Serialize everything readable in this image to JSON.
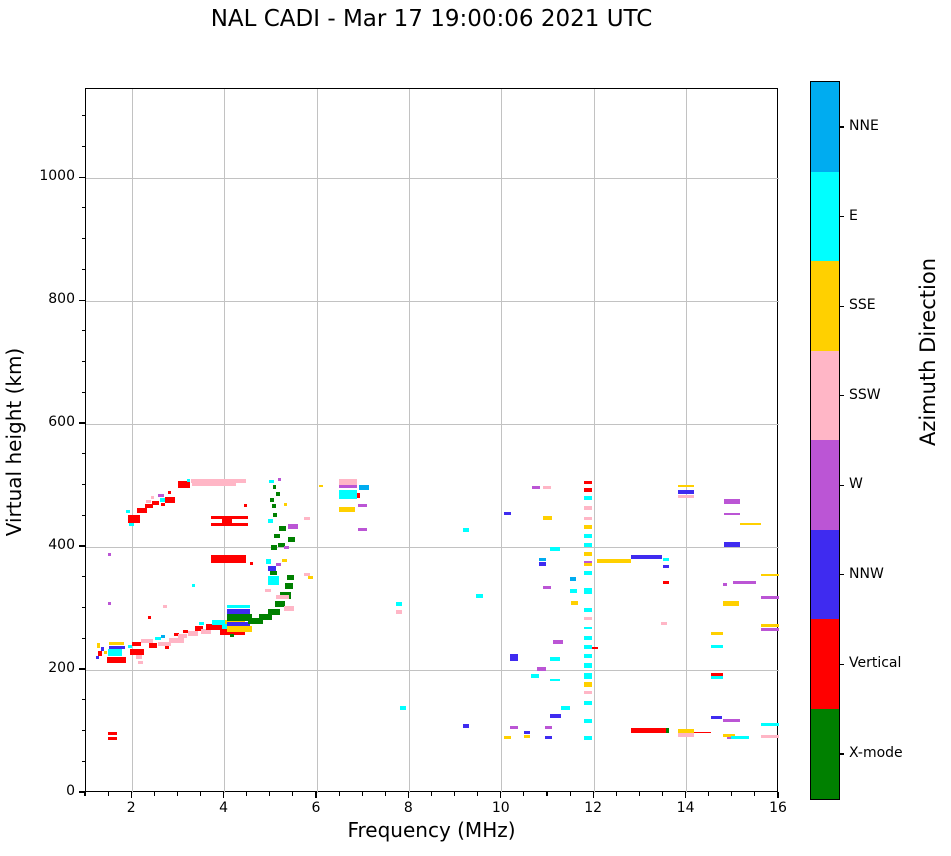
{
  "title": "NAL CADI - Mar 17 19:00:06 2021 UTC",
  "chart_data": {
    "type": "scatter",
    "title": "NAL CADI - Mar 17 19:00:06 2021 UTC",
    "xlabel": "Frequency (MHz)",
    "ylabel": "Virtual height (km)",
    "xlim": [
      1,
      16
    ],
    "ylim": [
      0,
      1145
    ],
    "xticks": [
      2,
      4,
      6,
      8,
      10,
      12,
      14,
      16
    ],
    "yticks": [
      0,
      200,
      400,
      600,
      800,
      1000
    ],
    "x_minor_step": 0.5,
    "y_minor_step": 50,
    "grid": true,
    "grid_color": "#c2c2c2",
    "legend_position": "right-colorbar",
    "colorbar": {
      "label": "Azimuth Direction",
      "categories": [
        {
          "label": "NNE",
          "color": "#00ACF0"
        },
        {
          "label": "E",
          "color": "#00FFFF"
        },
        {
          "label": "SSE",
          "color": "#FFD000"
        },
        {
          "label": "SSW",
          "color": "#FFB6C6"
        },
        {
          "label": "W",
          "color": "#BB55D5"
        },
        {
          "label": "NNW",
          "color": "#3F2BF0"
        },
        {
          "label": "Vertical",
          "color": "#FF0000"
        },
        {
          "label": "X-mode",
          "color": "#008000"
        }
      ]
    },
    "point_format": [
      "freq_MHz",
      "height_km",
      "azimuth_key",
      "width_MHz",
      "thickness_px"
    ],
    "points": [
      [
        1.86,
        458,
        "E",
        0.1,
        3
      ],
      [
        1.9,
        446,
        "V",
        0.26,
        8
      ],
      [
        1.93,
        437,
        "E",
        0.1,
        3
      ],
      [
        2.1,
        459,
        "V",
        0.22,
        5
      ],
      [
        2.28,
        466,
        "V",
        0.16,
        4
      ],
      [
        2.3,
        474,
        "SSW",
        0.1,
        3
      ],
      [
        2.4,
        481,
        "SSW",
        0.08,
        3
      ],
      [
        2.43,
        472,
        "V",
        0.14,
        4
      ],
      [
        2.56,
        484,
        "W",
        0.12,
        3
      ],
      [
        2.6,
        477,
        "E",
        0.14,
        4
      ],
      [
        2.62,
        470,
        "V",
        0.1,
        3
      ],
      [
        2.72,
        476,
        "V",
        0.2,
        6
      ],
      [
        2.77,
        488,
        "V",
        0.06,
        3
      ],
      [
        3.0,
        501,
        "V",
        0.26,
        7
      ],
      [
        3.18,
        509,
        "E",
        0.08,
        3
      ],
      [
        3.27,
        508,
        "SSW",
        1.2,
        4
      ],
      [
        3.3,
        501,
        "SSW",
        0.95,
        3
      ],
      [
        3.7,
        448,
        "V",
        0.8,
        3
      ],
      [
        3.7,
        436,
        "V",
        0.8,
        3
      ],
      [
        3.95,
        443,
        "V",
        0.22,
        5
      ],
      [
        3.7,
        380,
        "V",
        0.76,
        8
      ],
      [
        1.47,
        388,
        "W",
        0.06,
        3
      ],
      [
        1.48,
        309,
        "W",
        0.06,
        3
      ],
      [
        1.48,
        96,
        "V",
        0.2,
        3
      ],
      [
        1.48,
        89,
        "V",
        0.2,
        3
      ],
      [
        1.24,
        240,
        "SSE",
        0.07,
        5
      ],
      [
        1.27,
        227,
        "V",
        0.07,
        5
      ],
      [
        1.21,
        221,
        "NNW",
        0.05,
        3
      ],
      [
        1.33,
        235,
        "NNW",
        0.07,
        4
      ],
      [
        1.39,
        228,
        "SSE",
        0.05,
        3
      ],
      [
        1.5,
        243,
        "SSE",
        0.33,
        3
      ],
      [
        1.5,
        236,
        "NNW",
        0.35,
        3
      ],
      [
        1.47,
        228,
        "E",
        0.3,
        7
      ],
      [
        1.45,
        217,
        "V",
        0.42,
        6
      ],
      [
        1.9,
        238,
        "E",
        0.1,
        3
      ],
      [
        1.95,
        230,
        "V",
        0.3,
        6
      ],
      [
        2.0,
        243,
        "V",
        0.2,
        4
      ],
      [
        2.08,
        222,
        "SSW",
        0.14,
        4
      ],
      [
        2.13,
        212,
        "SSW",
        0.1,
        3
      ],
      [
        2.2,
        247,
        "SSW",
        0.25,
        4
      ],
      [
        2.34,
        285,
        "V",
        0.06,
        3
      ],
      [
        2.36,
        240,
        "V",
        0.18,
        5
      ],
      [
        2.5,
        252,
        "E",
        0.12,
        3
      ],
      [
        2.55,
        243,
        "SSW",
        0.28,
        4
      ],
      [
        2.63,
        255,
        "NNE",
        0.08,
        3
      ],
      [
        2.67,
        304,
        "SSW",
        0.09,
        3
      ],
      [
        2.7,
        236,
        "V",
        0.1,
        3
      ],
      [
        2.8,
        248,
        "SSW",
        0.32,
        5
      ],
      [
        2.9,
        258,
        "V",
        0.12,
        3
      ],
      [
        3.0,
        255,
        "SSW",
        0.18,
        4
      ],
      [
        3.1,
        262,
        "V",
        0.1,
        3
      ],
      [
        3.2,
        260,
        "SSW",
        0.22,
        5
      ],
      [
        3.3,
        337,
        "E",
        0.07,
        3
      ],
      [
        3.35,
        268,
        "V",
        0.18,
        5
      ],
      [
        3.45,
        275,
        "E",
        0.1,
        3
      ],
      [
        3.48,
        263,
        "SSW",
        0.22,
        5
      ],
      [
        3.6,
        270,
        "V",
        0.38,
        6
      ],
      [
        3.72,
        278,
        "E",
        0.28,
        5
      ],
      [
        3.9,
        262,
        "V",
        0.55,
        7
      ],
      [
        3.95,
        270,
        "E",
        0.5,
        5
      ],
      [
        4.0,
        278,
        "SSE",
        0.45,
        4
      ],
      [
        4.05,
        303,
        "E",
        0.5,
        3
      ],
      [
        4.05,
        296,
        "NNW",
        0.5,
        5
      ],
      [
        4.05,
        286,
        "X",
        0.55,
        7
      ],
      [
        4.05,
        275,
        "NNW",
        0.5,
        4
      ],
      [
        4.05,
        267,
        "SSE",
        0.55,
        6
      ],
      [
        4.12,
        256,
        "X",
        0.08,
        3
      ],
      [
        4.5,
        280,
        "X",
        0.33,
        6
      ],
      [
        4.75,
        286,
        "X",
        0.28,
        6
      ],
      [
        4.95,
        294,
        "X",
        0.25,
        6
      ],
      [
        5.1,
        307,
        "X",
        0.2,
        6
      ],
      [
        5.2,
        321,
        "X",
        0.24,
        7
      ],
      [
        5.3,
        337,
        "X",
        0.18,
        6
      ],
      [
        5.36,
        351,
        "X",
        0.14,
        5
      ],
      [
        5.12,
        318,
        "SSW",
        0.28,
        4
      ],
      [
        5.28,
        300,
        "SSW",
        0.22,
        5
      ],
      [
        4.88,
        330,
        "SSW",
        0.12,
        3
      ],
      [
        5.72,
        355,
        "SSW",
        0.13,
        3
      ],
      [
        5.8,
        350,
        "SSE",
        0.11,
        3
      ],
      [
        4.93,
        345,
        "E",
        0.24,
        9
      ],
      [
        4.98,
        357,
        "X",
        0.16,
        4
      ],
      [
        4.93,
        365,
        "NNW",
        0.18,
        5
      ],
      [
        5.12,
        371,
        "W",
        0.1,
        3
      ],
      [
        4.9,
        377,
        "E",
        0.1,
        5
      ],
      [
        5.25,
        378,
        "SSE",
        0.1,
        3
      ],
      [
        5.0,
        399,
        "X",
        0.13,
        5
      ],
      [
        5.15,
        403,
        "X",
        0.16,
        4
      ],
      [
        5.28,
        400,
        "W",
        0.12,
        3
      ],
      [
        5.38,
        413,
        "X",
        0.14,
        5
      ],
      [
        5.08,
        418,
        "X",
        0.12,
        4
      ],
      [
        5.18,
        431,
        "X",
        0.14,
        5
      ],
      [
        5.37,
        434,
        "W",
        0.21,
        5
      ],
      [
        4.93,
        442,
        "E",
        0.11,
        4
      ],
      [
        5.05,
        452,
        "X",
        0.09,
        4
      ],
      [
        5.72,
        447,
        "SSW",
        0.12,
        3
      ],
      [
        5.03,
        466,
        "X",
        0.09,
        4
      ],
      [
        4.99,
        477,
        "X",
        0.09,
        4
      ],
      [
        5.11,
        487,
        "X",
        0.09,
        4
      ],
      [
        5.04,
        497,
        "X",
        0.08,
        4
      ],
      [
        4.97,
        507,
        "E",
        0.09,
        3
      ],
      [
        5.15,
        510,
        "W",
        0.07,
        3
      ],
      [
        5.28,
        470,
        "SSE",
        0.07,
        3
      ],
      [
        4.42,
        467,
        "V",
        0.07,
        3
      ],
      [
        4.55,
        373,
        "V",
        0.07,
        3
      ],
      [
        6.05,
        500,
        "SSE",
        0.08,
        2
      ],
      [
        6.48,
        506,
        "SSW",
        0.38,
        6
      ],
      [
        6.48,
        499,
        "W",
        0.38,
        3
      ],
      [
        6.9,
        497,
        "NNE",
        0.22,
        5
      ],
      [
        6.48,
        486,
        "E",
        0.38,
        9
      ],
      [
        6.86,
        484,
        "V",
        0.08,
        5
      ],
      [
        6.48,
        461,
        "SSE",
        0.34,
        5
      ],
      [
        6.88,
        467,
        "W",
        0.2,
        3
      ],
      [
        6.88,
        428,
        "W",
        0.2,
        3
      ],
      [
        7.7,
        307,
        "E",
        0.15,
        4
      ],
      [
        7.7,
        295,
        "SSW",
        0.15,
        4
      ],
      [
        7.8,
        138,
        "E",
        0.13,
        4
      ],
      [
        9.15,
        428,
        "E",
        0.14,
        4
      ],
      [
        9.45,
        321,
        "E",
        0.15,
        4
      ],
      [
        9.16,
        109,
        "NNW",
        0.14,
        4
      ],
      [
        10.05,
        455,
        "NNW",
        0.15,
        3
      ],
      [
        10.65,
        497,
        "W",
        0.18,
        3
      ],
      [
        10.9,
        497,
        "SSW",
        0.16,
        3
      ],
      [
        10.9,
        447,
        "SSE",
        0.18,
        4
      ],
      [
        11.05,
        397,
        "E",
        0.22,
        4
      ],
      [
        10.8,
        380,
        "NNE",
        0.16,
        3
      ],
      [
        10.8,
        373,
        "NNW",
        0.16,
        4
      ],
      [
        11.48,
        348,
        "NNE",
        0.13,
        4
      ],
      [
        10.9,
        335,
        "W",
        0.16,
        3
      ],
      [
        11.48,
        328,
        "E",
        0.14,
        4
      ],
      [
        11.5,
        309,
        "SSE",
        0.16,
        4
      ],
      [
        10.18,
        220,
        "NNW",
        0.18,
        7
      ],
      [
        11.05,
        218,
        "E",
        0.22,
        4
      ],
      [
        11.1,
        246,
        "W",
        0.22,
        4
      ],
      [
        10.77,
        202,
        "W",
        0.18,
        4
      ],
      [
        10.63,
        190,
        "E",
        0.18,
        4
      ],
      [
        11.05,
        184,
        "E",
        0.22,
        2
      ],
      [
        11.28,
        138,
        "E",
        0.2,
        4
      ],
      [
        11.05,
        125,
        "NNW",
        0.24,
        4
      ],
      [
        10.18,
        106,
        "W",
        0.16,
        3
      ],
      [
        10.93,
        106,
        "W",
        0.15,
        3
      ],
      [
        10.48,
        98,
        "NNW",
        0.14,
        3
      ],
      [
        10.48,
        92,
        "SSE",
        0.14,
        3
      ],
      [
        10.05,
        90,
        "SSE",
        0.15,
        3
      ],
      [
        10.93,
        90,
        "NNW",
        0.15,
        3
      ],
      [
        11.78,
        505,
        "V",
        0.17,
        3
      ],
      [
        11.78,
        493,
        "V",
        0.17,
        4
      ],
      [
        11.78,
        480,
        "E",
        0.17,
        4
      ],
      [
        11.78,
        463,
        "SSW",
        0.17,
        4
      ],
      [
        11.78,
        447,
        "SSW",
        0.17,
        3
      ],
      [
        11.78,
        433,
        "SSE",
        0.17,
        4
      ],
      [
        11.78,
        418,
        "E",
        0.17,
        4
      ],
      [
        11.78,
        403,
        "E",
        0.17,
        4
      ],
      [
        11.78,
        388,
        "SSE",
        0.17,
        4
      ],
      [
        11.78,
        376,
        "W",
        0.17,
        2
      ],
      [
        11.78,
        372,
        "SSE",
        0.17,
        3
      ],
      [
        11.78,
        358,
        "E",
        0.17,
        4
      ],
      [
        11.78,
        328,
        "E",
        0.17,
        6
      ],
      [
        11.78,
        297,
        "E",
        0.17,
        4
      ],
      [
        11.78,
        283,
        "SSW",
        0.17,
        3
      ],
      [
        11.78,
        268,
        "E",
        0.17,
        2
      ],
      [
        11.78,
        252,
        "E",
        0.17,
        4
      ],
      [
        11.78,
        237,
        "E",
        0.17,
        4
      ],
      [
        11.78,
        223,
        "E",
        0.17,
        4
      ],
      [
        11.78,
        207,
        "E",
        0.17,
        5
      ],
      [
        11.78,
        190,
        "E",
        0.17,
        6
      ],
      [
        11.78,
        177,
        "SSE",
        0.17,
        5
      ],
      [
        11.78,
        163,
        "SSW",
        0.17,
        3
      ],
      [
        11.78,
        147,
        "E",
        0.17,
        4
      ],
      [
        11.78,
        117,
        "E",
        0.17,
        4
      ],
      [
        11.78,
        90,
        "E",
        0.17,
        4
      ],
      [
        11.95,
        236,
        "V",
        0.14,
        2
      ],
      [
        12.1,
        376,
        "SSE",
        0.1,
        2
      ],
      [
        12.05,
        378,
        "SSE",
        0.75,
        4
      ],
      [
        12.8,
        384,
        "NNW",
        0.67,
        4
      ],
      [
        13.48,
        380,
        "E",
        0.15,
        3
      ],
      [
        13.48,
        369,
        "NNW",
        0.15,
        3
      ],
      [
        13.48,
        342,
        "V",
        0.14,
        3
      ],
      [
        13.45,
        276,
        "SSW",
        0.13,
        3
      ],
      [
        12.8,
        101,
        "V",
        0.78,
        5
      ],
      [
        13.56,
        101,
        "X",
        0.06,
        5
      ],
      [
        13.81,
        499,
        "SSE",
        0.35,
        2
      ],
      [
        13.81,
        489,
        "NNW",
        0.35,
        4
      ],
      [
        13.81,
        483,
        "SSW",
        0.35,
        3
      ],
      [
        13.81,
        101,
        "SSE",
        0.35,
        4
      ],
      [
        13.81,
        95,
        "SSW",
        0.35,
        4
      ],
      [
        14.16,
        99,
        "V",
        0.37,
        1
      ],
      [
        14.81,
        474,
        "W",
        0.35,
        5
      ],
      [
        14.81,
        453,
        "W",
        0.35,
        2
      ],
      [
        15.15,
        438,
        "SSE",
        0.46,
        2
      ],
      [
        14.81,
        404,
        "NNW",
        0.35,
        5
      ],
      [
        15.0,
        343,
        "W",
        0.5,
        3
      ],
      [
        14.78,
        339,
        "W",
        0.1,
        3
      ],
      [
        14.79,
        308,
        "SSE",
        0.35,
        5
      ],
      [
        14.53,
        260,
        "SSE",
        0.26,
        3
      ],
      [
        14.53,
        238,
        "E",
        0.26,
        3
      ],
      [
        14.53,
        193,
        "V",
        0.26,
        3
      ],
      [
        14.53,
        188,
        "E",
        0.26,
        3
      ],
      [
        14.53,
        123,
        "NNW",
        0.24,
        3
      ],
      [
        14.79,
        118,
        "W",
        0.37,
        3
      ],
      [
        14.79,
        94,
        "SSE",
        0.25,
        3
      ],
      [
        14.87,
        89,
        "W",
        0.3,
        2
      ],
      [
        14.97,
        91,
        "E",
        0.38,
        3
      ],
      [
        15.62,
        355,
        "SSE",
        0.38,
        2
      ],
      [
        15.62,
        318,
        "W",
        0.38,
        3
      ],
      [
        15.62,
        273,
        "SSE",
        0.38,
        3
      ],
      [
        15.62,
        266,
        "W",
        0.38,
        3
      ],
      [
        15.62,
        112,
        "E",
        0.38,
        3
      ],
      [
        15.62,
        92,
        "SSW",
        0.38,
        3
      ]
    ]
  }
}
